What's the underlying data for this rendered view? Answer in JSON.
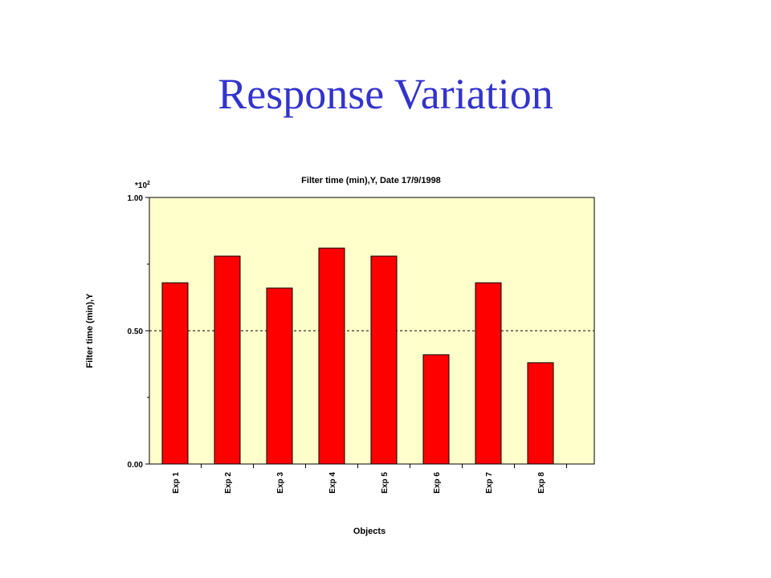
{
  "slide": {
    "title": "Response Variation"
  },
  "colors": {
    "bar": "#ff0000",
    "plot_background": "#ffffcc",
    "title": "#3333cc"
  },
  "chart_data": {
    "type": "bar",
    "title": "Filter time (min),Y, Date 17/9/1998",
    "xlabel": "Objects",
    "ylabel": "Filter time (min),Y",
    "scale_label": "*10",
    "scale_exponent": "2",
    "categories": [
      "Exp 1",
      "Exp 2",
      "Exp 3",
      "Exp 4",
      "Exp 5",
      "Exp 6",
      "Exp 7",
      "Exp 8"
    ],
    "values": [
      0.68,
      0.78,
      0.66,
      0.81,
      0.78,
      0.41,
      0.68,
      0.38
    ],
    "ylim": [
      0,
      1.0
    ],
    "yticks": [
      {
        "value": 0.0,
        "label": "0.00"
      },
      {
        "value": 0.5,
        "label": "0.50"
      },
      {
        "value": 1.0,
        "label": "1.00"
      }
    ],
    "minor_yticks": [
      0.25,
      0.75
    ],
    "reference_line": 0.5,
    "grid": false,
    "legend": "none"
  }
}
